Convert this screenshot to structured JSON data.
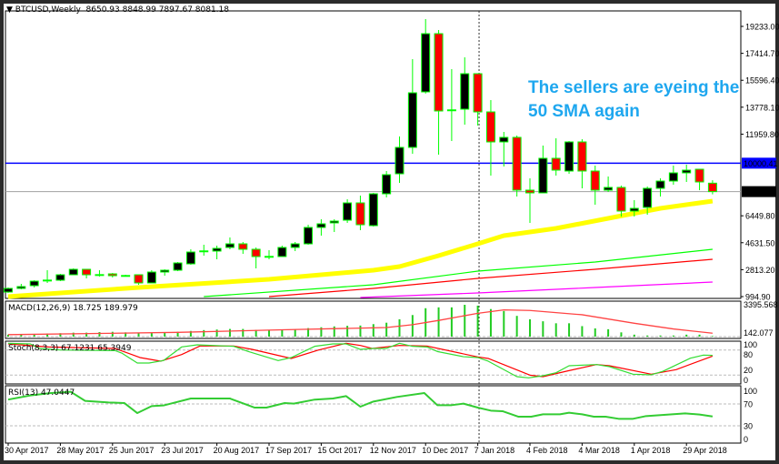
{
  "header": {
    "symbol": "BTCUSD,Weekly",
    "ohlc": "8650.93 8848.99 7897.67 8081.18",
    "arrow": "▼"
  },
  "annotation": {
    "line1": "The sellers are eyeing the",
    "line2": "50 SMA again",
    "color": "#1ea7ef"
  },
  "colors": {
    "bull_body": "#000000",
    "bear_body": "#ff0000",
    "wick": "#00ff00",
    "sma50": "#ffff00",
    "ma_green": "#00ff00",
    "ma_red": "#ff0000",
    "ma_magenta": "#ff00ff",
    "level_blue": "#0000ff",
    "level_gray": "#a0a0a0"
  },
  "chart_data": [
    {
      "type": "candlestick",
      "title": "BTCUSD,Weekly",
      "ylim": [
        994.9,
        19233
      ],
      "y_ticks": [
        "19233.00",
        "17414.70",
        "15596.40",
        "13778.10",
        "11959.80",
        "6449.80",
        "4631.50",
        "2813.20",
        "994.90"
      ],
      "y_tick_values": [
        19233,
        17414.7,
        15596.4,
        13778.1,
        11959.8,
        6449.8,
        4631.5,
        2813.2,
        994.9
      ],
      "x_ticks": [
        "30 Apr 2017",
        "28 May 2017",
        "25 Jun 2017",
        "23 Jul 2017",
        "20 Aug 2017",
        "17 Sep 2017",
        "15 Oct 2017",
        "12 Nov 2017",
        "10 Dec 2017",
        "7 Jan 2018",
        "4 Feb 2018",
        "4 Mar 2018",
        "1 Apr 2018",
        "29 Apr 2018"
      ],
      "x_tick_index": [
        0,
        4,
        8,
        12,
        16,
        20,
        24,
        28,
        32,
        36,
        40,
        44,
        48,
        52
      ],
      "levels": [
        {
          "label": "10000.41",
          "value": 10000.41,
          "style": "blue"
        },
        {
          "label": "8081.18",
          "value": 8081.18,
          "style": "current"
        }
      ],
      "vline_index": 36.1,
      "candles_ohlc": [
        [
          1302,
          1609,
          1250,
          1548
        ],
        [
          1548,
          1855,
          1486,
          1670
        ],
        [
          1732,
          2100,
          1609,
          2039
        ],
        [
          2080,
          2776,
          1916,
          2110
        ],
        [
          2100,
          2530,
          2039,
          2469
        ],
        [
          2469,
          2900,
          2440,
          2837
        ],
        [
          2837,
          2837,
          2223,
          2469
        ],
        [
          2469,
          2776,
          2346,
          2480
        ],
        [
          2530,
          2590,
          2285,
          2407
        ],
        [
          2420,
          2470,
          2380,
          2407
        ],
        [
          2469,
          2469,
          1793,
          1916
        ],
        [
          1916,
          2776,
          1916,
          2653
        ],
        [
          2653,
          2837,
          2407,
          2776
        ],
        [
          2776,
          3328,
          2714,
          3267
        ],
        [
          3206,
          4188,
          3144,
          4004
        ],
        [
          4066,
          4495,
          3758,
          4080
        ],
        [
          4066,
          4434,
          3513,
          4250
        ],
        [
          4311,
          4987,
          4188,
          4557
        ],
        [
          4557,
          4680,
          3881,
          4188
        ],
        [
          4188,
          4311,
          2899,
          3697
        ],
        [
          3697,
          4127,
          3513,
          3710
        ],
        [
          3697,
          4434,
          3697,
          4311
        ],
        [
          4311,
          4680,
          4066,
          4557
        ],
        [
          4557,
          5846,
          4495,
          5662
        ],
        [
          5662,
          6215,
          5109,
          5908
        ],
        [
          5969,
          6215,
          5355,
          6092
        ],
        [
          6153,
          7566,
          5969,
          7320
        ],
        [
          7320,
          7812,
          5478,
          5846
        ],
        [
          5785,
          7996,
          5724,
          7934
        ],
        [
          7934,
          9470,
          7689,
          9224
        ],
        [
          9285,
          11803,
          8671,
          11066
        ],
        [
          11066,
          17023,
          10636,
          14751
        ],
        [
          14812,
          19725,
          14700,
          18742
        ],
        [
          18742,
          18988,
          10575,
          13523
        ],
        [
          13584,
          16348,
          11496,
          13600
        ],
        [
          13645,
          17146,
          12601,
          16040
        ],
        [
          16040,
          16040,
          12540,
          13461
        ],
        [
          13461,
          14260,
          9163,
          11435
        ],
        [
          11435,
          12110,
          9777,
          11742
        ],
        [
          11742,
          11865,
          7750,
          8180
        ],
        [
          8180,
          8978,
          5969,
          7996
        ],
        [
          7996,
          11189,
          7996,
          10329
        ],
        [
          10329,
          11680,
          9163,
          9531
        ],
        [
          9470,
          11496,
          9285,
          11435
        ],
        [
          11435,
          11619,
          8303,
          9470
        ],
        [
          9470,
          9838,
          7197,
          8180
        ],
        [
          8180,
          9101,
          8057,
          8364
        ],
        [
          8364,
          8487,
          6399,
          6768
        ],
        [
          6768,
          7504,
          6399,
          6952
        ],
        [
          7013,
          8426,
          6522,
          8303
        ],
        [
          8303,
          8978,
          7750,
          8794
        ],
        [
          8794,
          9838,
          8548,
          9347
        ],
        [
          9347,
          9899,
          8733,
          9531
        ],
        [
          9592,
          9592,
          8180,
          8733
        ],
        [
          8650.93,
          8848.99,
          7897.67,
          8081.18
        ]
      ],
      "moving_averages": [
        {
          "name": "SMA50",
          "color": "sma50",
          "points": [
            [
              0,
              995
            ],
            [
              10,
              1609
            ],
            [
              20,
              2162
            ],
            [
              28,
              2776
            ],
            [
              30,
              3022
            ],
            [
              33,
              3758
            ],
            [
              36,
              4557
            ],
            [
              38,
              5109
            ],
            [
              42,
              5600
            ],
            [
              46,
              6276
            ],
            [
              50,
              6952
            ],
            [
              54,
              7443
            ]
          ]
        },
        {
          "name": "MA green",
          "color": "ma_green",
          "points": [
            [
              15,
              995
            ],
            [
              28,
              1793
            ],
            [
              36,
              2714
            ],
            [
              45,
              3328
            ],
            [
              54,
              4188
            ]
          ]
        },
        {
          "name": "MA red",
          "color": "ma_red",
          "points": [
            [
              20,
              995
            ],
            [
              28,
              1548
            ],
            [
              36,
              2223
            ],
            [
              45,
              2837
            ],
            [
              54,
              3513
            ]
          ]
        },
        {
          "name": "MA magenta",
          "color": "ma_magenta",
          "points": [
            [
              27,
              934
            ],
            [
              36,
              1241
            ],
            [
              45,
              1609
            ],
            [
              54,
              1977
            ]
          ]
        }
      ]
    },
    {
      "type": "bar+line",
      "title": "MACD(12,26,9) 18.725 189.979",
      "ylim": [
        0,
        3395.568
      ],
      "y_ticks": [
        "3395.568",
        "142.077"
      ],
      "histogram": [
        212,
        273,
        273,
        333,
        364,
        424,
        424,
        485,
        515,
        455,
        394,
        394,
        394,
        515,
        606,
        697,
        758,
        818,
        818,
        727,
        727,
        727,
        727,
        909,
        1000,
        1091,
        1151,
        1182,
        1333,
        1485,
        1848,
        2303,
        3030,
        3121,
        3121,
        3394,
        3303,
        2939,
        2727,
        2212,
        1848,
        1636,
        1424,
        1424,
        1121,
        879,
        788,
        455,
        212,
        121,
        121,
        121,
        212,
        212,
        61
      ],
      "signal_points": [
        [
          0,
          212
        ],
        [
          13,
          455
        ],
        [
          21,
          727
        ],
        [
          29,
          970
        ],
        [
          31,
          1273
        ],
        [
          33,
          1727
        ],
        [
          36,
          2485
        ],
        [
          38,
          2848
        ],
        [
          40,
          2788
        ],
        [
          44,
          2333
        ],
        [
          48,
          1424
        ],
        [
          51,
          818
        ],
        [
          54,
          364
        ]
      ]
    },
    {
      "type": "line",
      "title": "Stoch(8,3,3) 67.1231 65.3949",
      "ylim": [
        0,
        100
      ],
      "y_ticks": [
        "100",
        "80",
        "20",
        "0"
      ],
      "levels": [
        80,
        20
      ],
      "main": [
        [
          0,
          96
        ],
        [
          1.7,
          94.6
        ],
        [
          2.4,
          83.7
        ],
        [
          4,
          80
        ],
        [
          8.2,
          78.6
        ],
        [
          8.7,
          72.8
        ],
        [
          9.9,
          48.9
        ],
        [
          10.8,
          48.9
        ],
        [
          11.9,
          54.7
        ],
        [
          13.3,
          87.3
        ],
        [
          14.5,
          92.4
        ],
        [
          17.3,
          88.8
        ],
        [
          18.4,
          76.4
        ],
        [
          20.7,
          54.7
        ],
        [
          21.7,
          62
        ],
        [
          23.5,
          88.8
        ],
        [
          24.9,
          94.6
        ],
        [
          25.9,
          94.6
        ],
        [
          27,
          81.5
        ],
        [
          28,
          83.7
        ],
        [
          29,
          83.7
        ],
        [
          30,
          96
        ],
        [
          31,
          88.8
        ],
        [
          32.1,
          87.3
        ],
        [
          32.9,
          76.4
        ],
        [
          34.9,
          64
        ],
        [
          36,
          62
        ],
        [
          36.8,
          53.3
        ],
        [
          39,
          16.3
        ],
        [
          39.9,
          13.4
        ],
        [
          41,
          18.5
        ],
        [
          42,
          25.7
        ],
        [
          43,
          42.4
        ],
        [
          45.1,
          45.3
        ],
        [
          46.1,
          40.2
        ],
        [
          47.9,
          22.1
        ],
        [
          49.3,
          20.7
        ],
        [
          50.2,
          29.3
        ],
        [
          52.3,
          60.5
        ],
        [
          53.3,
          67.8
        ],
        [
          54,
          67.1
        ]
      ],
      "signal": [
        [
          0,
          94.6
        ],
        [
          3.1,
          87.3
        ],
        [
          8.2,
          83.7
        ],
        [
          10.1,
          62
        ],
        [
          11.7,
          53.3
        ],
        [
          13.3,
          69.2
        ],
        [
          14.7,
          89.5
        ],
        [
          17.3,
          89.5
        ],
        [
          18.7,
          81.5
        ],
        [
          21.7,
          59.8
        ],
        [
          23.8,
          80
        ],
        [
          25.9,
          96
        ],
        [
          27,
          90.9
        ],
        [
          27.9,
          83.7
        ],
        [
          30,
          90.9
        ],
        [
          32.1,
          89.5
        ],
        [
          36,
          63.4
        ],
        [
          36.8,
          59.8
        ],
        [
          40,
          19.9
        ],
        [
          41,
          16.3
        ],
        [
          42.8,
          29.3
        ],
        [
          45.1,
          45.3
        ],
        [
          46.1,
          42.4
        ],
        [
          49.3,
          22.1
        ],
        [
          51.2,
          33
        ],
        [
          54,
          65.4
        ]
      ]
    },
    {
      "type": "line",
      "title": "RSI(13) 47.0447",
      "ylim": [
        0,
        100
      ],
      "y_ticks": [
        "100",
        "70",
        "30",
        "0"
      ],
      "levels": [
        70,
        30
      ],
      "values": [
        [
          0,
          78
        ],
        [
          1.7,
          85.6
        ],
        [
          3.3,
          90
        ],
        [
          4.8,
          92.2
        ],
        [
          5.9,
          75.6
        ],
        [
          7.7,
          72.8
        ],
        [
          8.9,
          71.7
        ],
        [
          9.9,
          53.3
        ],
        [
          11,
          66.1
        ],
        [
          11.9,
          67.2
        ],
        [
          14,
          80
        ],
        [
          17,
          80
        ],
        [
          18.9,
          63.3
        ],
        [
          19.8,
          63.3
        ],
        [
          21.2,
          71.7
        ],
        [
          21.9,
          70.6
        ],
        [
          23.5,
          78
        ],
        [
          24.9,
          80
        ],
        [
          25.9,
          84.4
        ],
        [
          27,
          65
        ],
        [
          28,
          74.4
        ],
        [
          29.8,
          82.8
        ],
        [
          31.9,
          90
        ],
        [
          32.9,
          67.8
        ],
        [
          34,
          67.8
        ],
        [
          34.9,
          70.6
        ],
        [
          36,
          63.3
        ],
        [
          37,
          57.8
        ],
        [
          37.9,
          56.7
        ],
        [
          39.1,
          46.7
        ],
        [
          40.1,
          46.7
        ],
        [
          41,
          51.1
        ],
        [
          42.3,
          51.1
        ],
        [
          43,
          53.9
        ],
        [
          44,
          51.1
        ],
        [
          44.9,
          46.7
        ],
        [
          45.8,
          46.7
        ],
        [
          46.8,
          42.8
        ],
        [
          47.9,
          42.8
        ],
        [
          48.9,
          47.8
        ],
        [
          51.9,
          52.8
        ],
        [
          53,
          50.6
        ],
        [
          54,
          47
        ]
      ]
    }
  ]
}
